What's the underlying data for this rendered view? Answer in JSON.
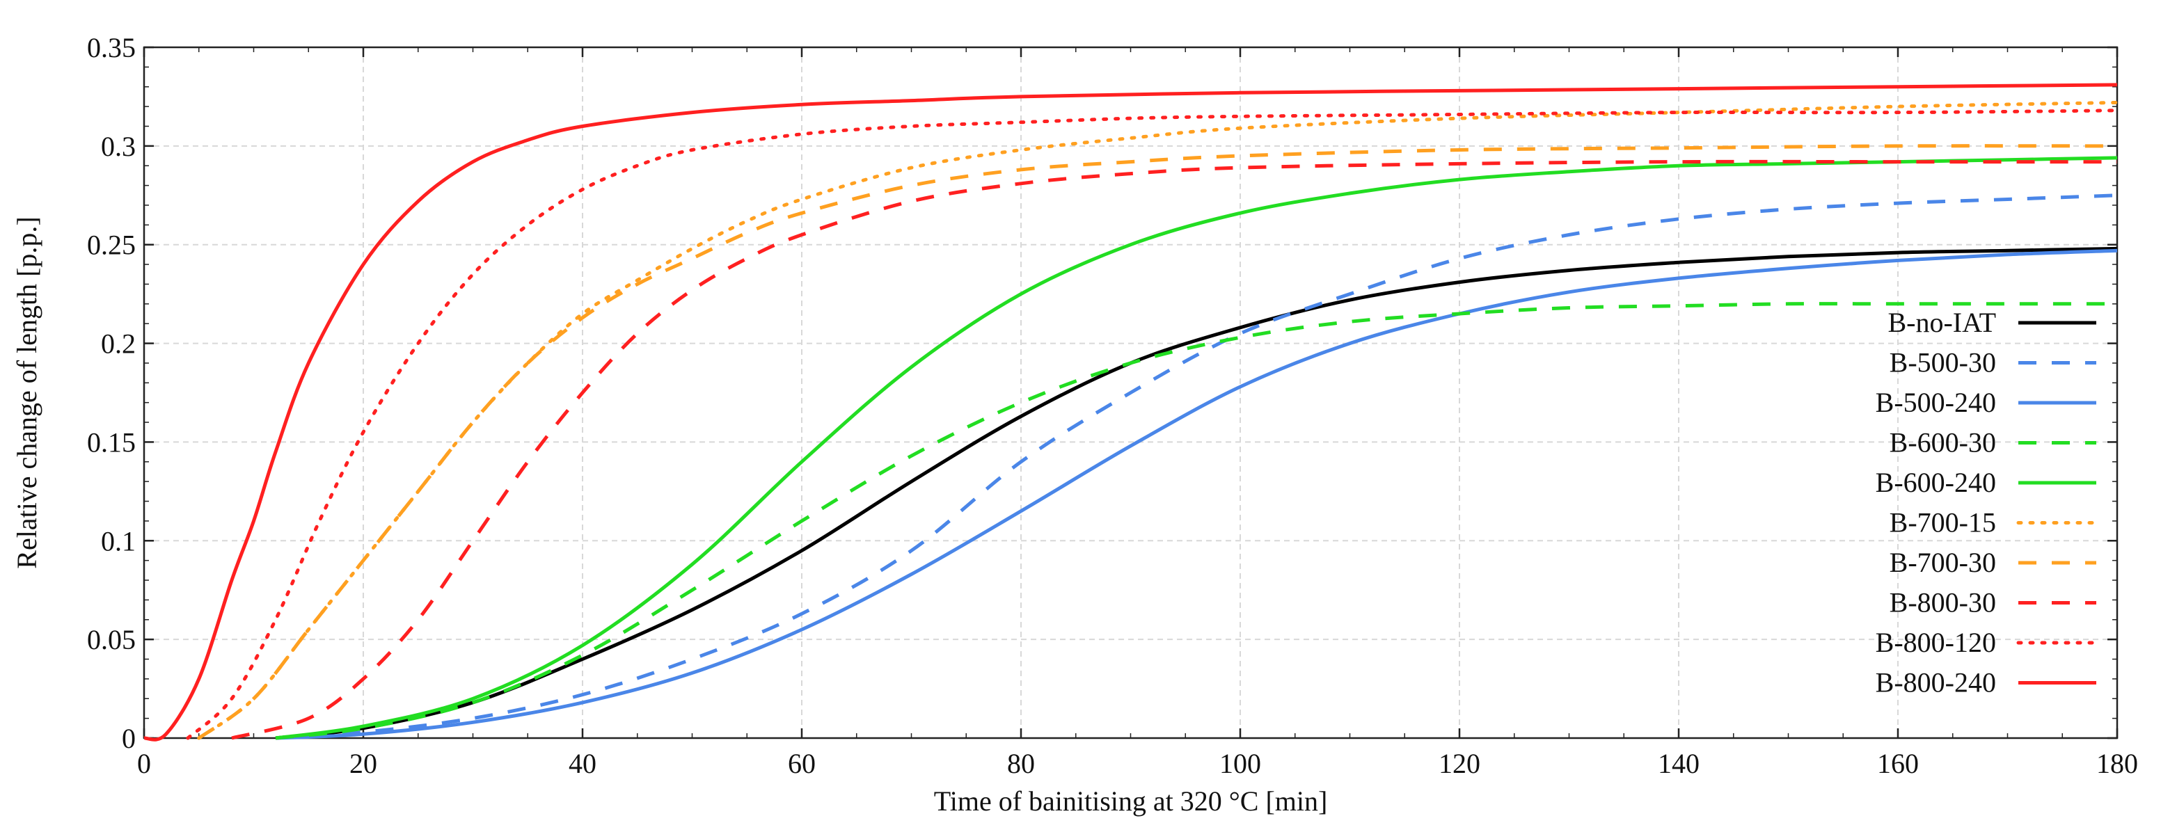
{
  "chart_data": {
    "type": "line",
    "title": "",
    "xlabel": "Time of bainitising at 320 °C [min]",
    "ylabel": "Relative change of length [p.p.]",
    "xlim": [
      0,
      180
    ],
    "ylim": [
      0,
      0.35
    ],
    "xticks": [
      0,
      20,
      40,
      60,
      80,
      100,
      120,
      140,
      160,
      180
    ],
    "yticks": [
      0,
      0.05,
      0.1,
      0.15,
      0.2,
      0.25,
      0.3,
      0.35
    ],
    "ytick_labels": [
      "0",
      "0.05",
      "0.1",
      "0.15",
      "0.2",
      "0.25",
      "0.3",
      "0.35"
    ],
    "grid": true,
    "legend_position": "right",
    "series": [
      {
        "name": "B-no-IAT",
        "color": "#000000",
        "style": "solid",
        "x": [
          12,
          20,
          30,
          40,
          50,
          60,
          70,
          80,
          90,
          100,
          110,
          120,
          130,
          140,
          150,
          160,
          170,
          180
        ],
        "y": [
          0,
          0.005,
          0.018,
          0.04,
          0.065,
          0.095,
          0.13,
          0.163,
          0.19,
          0.208,
          0.222,
          0.231,
          0.237,
          0.241,
          0.244,
          0.246,
          0.247,
          0.248
        ]
      },
      {
        "name": "B-500-30",
        "color": "#4a86e8",
        "style": "dashed",
        "x": [
          12,
          20,
          30,
          40,
          50,
          60,
          70,
          80,
          90,
          100,
          110,
          120,
          130,
          140,
          150,
          160,
          170,
          180
        ],
        "y": [
          0,
          0.003,
          0.01,
          0.022,
          0.04,
          0.063,
          0.095,
          0.14,
          0.175,
          0.205,
          0.225,
          0.243,
          0.255,
          0.263,
          0.268,
          0.271,
          0.273,
          0.275
        ]
      },
      {
        "name": "B-500-240",
        "color": "#4a86e8",
        "style": "solid",
        "x": [
          12,
          20,
          30,
          40,
          50,
          60,
          70,
          80,
          90,
          100,
          110,
          120,
          130,
          140,
          150,
          160,
          170,
          180
        ],
        "y": [
          0,
          0.002,
          0.008,
          0.018,
          0.033,
          0.055,
          0.083,
          0.115,
          0.148,
          0.178,
          0.2,
          0.215,
          0.226,
          0.233,
          0.238,
          0.242,
          0.245,
          0.247
        ]
      },
      {
        "name": "B-600-30",
        "color": "#22dd22",
        "style": "dashed",
        "x": [
          12,
          20,
          30,
          40,
          50,
          60,
          70,
          80,
          90,
          100,
          110,
          120,
          130,
          140,
          150,
          160,
          170,
          180
        ],
        "y": [
          0,
          0.005,
          0.018,
          0.042,
          0.075,
          0.11,
          0.143,
          0.17,
          0.19,
          0.203,
          0.211,
          0.215,
          0.218,
          0.219,
          0.22,
          0.22,
          0.22,
          0.22
        ]
      },
      {
        "name": "B-600-240",
        "color": "#22dd22",
        "style": "solid",
        "x": [
          12,
          20,
          30,
          40,
          50,
          60,
          70,
          80,
          90,
          100,
          110,
          120,
          130,
          140,
          150,
          160,
          170,
          180
        ],
        "y": [
          0,
          0.006,
          0.02,
          0.047,
          0.088,
          0.14,
          0.188,
          0.225,
          0.25,
          0.266,
          0.276,
          0.283,
          0.287,
          0.29,
          0.291,
          0.292,
          0.293,
          0.294
        ]
      },
      {
        "name": "B-700-15",
        "color": "#ffa020",
        "style": "dotted",
        "x": [
          5,
          10,
          15,
          20,
          25,
          30,
          35,
          40,
          45,
          50,
          55,
          60,
          70,
          80,
          90,
          100,
          120,
          140,
          160,
          180
        ],
        "y": [
          0,
          0.02,
          0.055,
          0.09,
          0.125,
          0.16,
          0.19,
          0.215,
          0.232,
          0.248,
          0.262,
          0.273,
          0.289,
          0.298,
          0.304,
          0.309,
          0.314,
          0.317,
          0.32,
          0.322
        ]
      },
      {
        "name": "B-700-30",
        "color": "#ffa020",
        "style": "dashed",
        "x": [
          5,
          10,
          15,
          20,
          25,
          30,
          35,
          40,
          45,
          50,
          55,
          60,
          70,
          80,
          90,
          100,
          120,
          140,
          160,
          180
        ],
        "y": [
          0,
          0.02,
          0.055,
          0.09,
          0.125,
          0.16,
          0.19,
          0.213,
          0.23,
          0.243,
          0.256,
          0.266,
          0.28,
          0.288,
          0.292,
          0.295,
          0.298,
          0.299,
          0.3,
          0.3
        ]
      },
      {
        "name": "B-800-30",
        "color": "#ff2020",
        "style": "dashed",
        "x": [
          8,
          15,
          20,
          25,
          30,
          35,
          40,
          45,
          50,
          55,
          60,
          70,
          80,
          90,
          100,
          120,
          140,
          160,
          180
        ],
        "y": [
          0,
          0.01,
          0.03,
          0.06,
          0.1,
          0.14,
          0.175,
          0.205,
          0.227,
          0.243,
          0.255,
          0.272,
          0.281,
          0.286,
          0.289,
          0.291,
          0.292,
          0.292,
          0.292
        ]
      },
      {
        "name": "B-800-120",
        "color": "#ff2020",
        "style": "dotted",
        "x": [
          4,
          8,
          12,
          16,
          20,
          25,
          30,
          35,
          40,
          45,
          50,
          60,
          70,
          80,
          90,
          100,
          120,
          140,
          160,
          180
        ],
        "y": [
          0,
          0.02,
          0.06,
          0.11,
          0.155,
          0.2,
          0.235,
          0.26,
          0.278,
          0.29,
          0.298,
          0.306,
          0.31,
          0.312,
          0.314,
          0.315,
          0.316,
          0.317,
          0.317,
          0.318
        ]
      },
      {
        "name": "B-800-240",
        "color": "#ff2020",
        "style": "solid",
        "x": [
          0,
          2,
          5,
          8,
          10,
          12,
          15,
          20,
          25,
          30,
          35,
          40,
          50,
          60,
          70,
          80,
          100,
          120,
          140,
          160,
          180
        ],
        "y": [
          0,
          0.002,
          0.03,
          0.08,
          0.11,
          0.145,
          0.19,
          0.24,
          0.272,
          0.292,
          0.303,
          0.31,
          0.317,
          0.321,
          0.323,
          0.325,
          0.327,
          0.328,
          0.329,
          0.33,
          0.331
        ]
      }
    ]
  }
}
